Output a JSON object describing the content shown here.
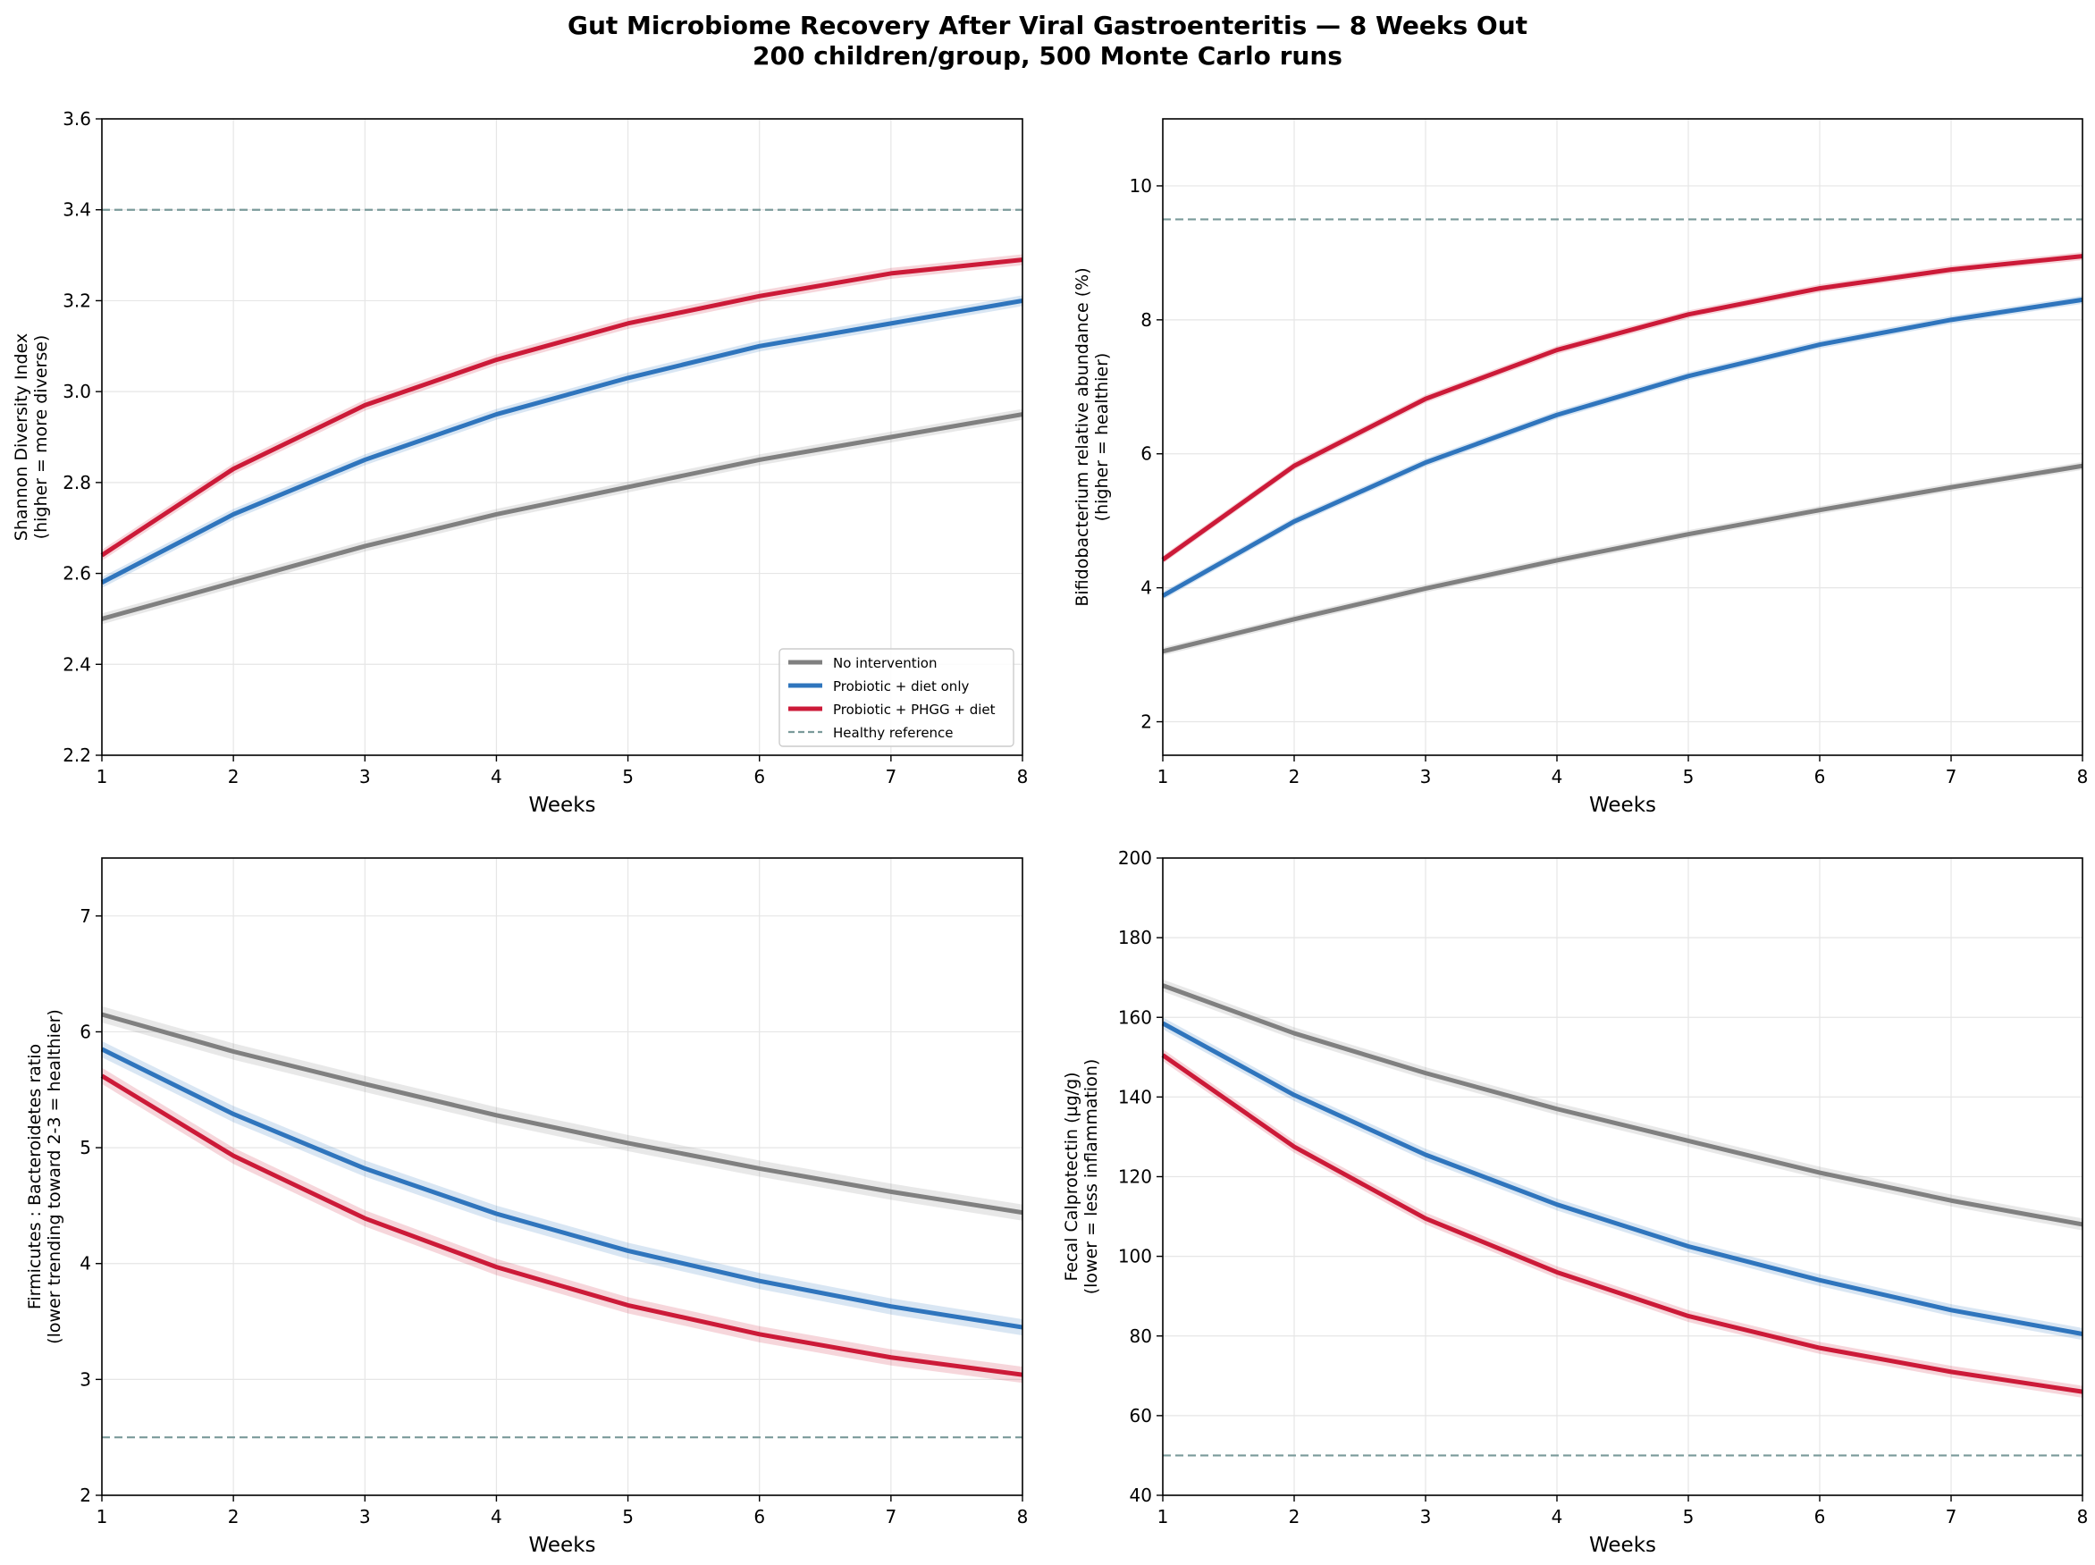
{
  "figure": {
    "title_line1": "Gut Microbiome Recovery After Viral Gastroenteritis — 8 Weeks Out",
    "title_line2": "200 children/group, 500 Monte Carlo runs"
  },
  "colors": {
    "no_intervention": "#808080",
    "probiotic_diet": "#2f75bd",
    "probiotic_phgg_diet": "#cc1a38",
    "healthy_reference": "#7a9a9a",
    "grid": "#e6e6e6"
  },
  "legend": {
    "items": [
      {
        "label": "No intervention",
        "color": "#808080",
        "style": "solid"
      },
      {
        "label": "Probiotic + diet only",
        "color": "#2f75bd",
        "style": "solid"
      },
      {
        "label": "Probiotic + PHGG + diet",
        "color": "#cc1a38",
        "style": "solid"
      },
      {
        "label": "Healthy reference",
        "color": "#7a9a9a",
        "style": "dashed"
      }
    ]
  },
  "chart_data": [
    {
      "type": "line",
      "xlabel": "Weeks",
      "ylabel": [
        "Shannon Diversity Index",
        "(higher = more diverse)"
      ],
      "x": [
        1,
        2,
        3,
        4,
        5,
        6,
        7,
        8
      ],
      "xlim": [
        1,
        8
      ],
      "ylim": [
        2.2,
        3.6
      ],
      "yticks": [
        2.2,
        2.4,
        2.6,
        2.8,
        3.0,
        3.2,
        3.4,
        3.6
      ],
      "ytick_labels": [
        "2.2",
        "2.4",
        "2.6",
        "2.8",
        "3.0",
        "3.2",
        "3.4",
        "3.6"
      ],
      "xticks": [
        1,
        2,
        3,
        4,
        5,
        6,
        7,
        8
      ],
      "grid": true,
      "legend": "lower-right",
      "band_halfwidth": 0.012,
      "reference": 3.4,
      "series": [
        {
          "name": "No intervention",
          "values": [
            2.5,
            2.58,
            2.66,
            2.73,
            2.79,
            2.85,
            2.9,
            2.95
          ]
        },
        {
          "name": "Probiotic + diet only",
          "values": [
            2.58,
            2.73,
            2.85,
            2.95,
            3.03,
            3.1,
            3.15,
            3.2
          ]
        },
        {
          "name": "Probiotic + PHGG + diet",
          "values": [
            2.64,
            2.83,
            2.97,
            3.07,
            3.15,
            3.21,
            3.26,
            3.29
          ]
        }
      ]
    },
    {
      "type": "line",
      "xlabel": "Weeks",
      "ylabel": [
        "Bifidobacterium relative abundance (%)",
        "(higher = healthier)"
      ],
      "x": [
        1,
        2,
        3,
        4,
        5,
        6,
        7,
        8
      ],
      "xlim": [
        1,
        8
      ],
      "ylim": [
        1.5,
        11
      ],
      "yticks": [
        2,
        4,
        6,
        8,
        10
      ],
      "ytick_labels": [
        "2",
        "4",
        "6",
        "8",
        "10"
      ],
      "xticks": [
        1,
        2,
        3,
        4,
        5,
        6,
        7,
        8
      ],
      "grid": true,
      "band_halfwidth": 0.06,
      "reference": 9.5,
      "series": [
        {
          "name": "No intervention",
          "values": [
            3.05,
            3.53,
            3.99,
            4.41,
            4.8,
            5.16,
            5.5,
            5.82
          ]
        },
        {
          "name": "Probiotic + diet only",
          "values": [
            3.88,
            4.99,
            5.87,
            6.58,
            7.16,
            7.63,
            8.0,
            8.3
          ]
        },
        {
          "name": "Probiotic + PHGG + diet",
          "values": [
            4.42,
            5.82,
            6.82,
            7.55,
            8.08,
            8.47,
            8.75,
            8.95
          ]
        }
      ]
    },
    {
      "type": "line",
      "xlabel": "Weeks",
      "ylabel": [
        "Firmicutes : Bacteroidetes ratio",
        "(lower trending toward 2-3 = healthier)"
      ],
      "x": [
        1,
        2,
        3,
        4,
        5,
        6,
        7,
        8
      ],
      "xlim": [
        1,
        8
      ],
      "ylim": [
        2,
        7.5
      ],
      "yticks": [
        2,
        3,
        4,
        5,
        6,
        7
      ],
      "ytick_labels": [
        "2",
        "3",
        "4",
        "5",
        "6",
        "7"
      ],
      "xticks": [
        1,
        2,
        3,
        4,
        5,
        6,
        7,
        8
      ],
      "grid": true,
      "band_halfwidth": 0.07,
      "reference": 2.5,
      "series": [
        {
          "name": "No intervention",
          "values": [
            6.15,
            5.83,
            5.55,
            5.28,
            5.04,
            4.82,
            4.62,
            4.44
          ]
        },
        {
          "name": "Probiotic + diet only",
          "values": [
            5.85,
            5.29,
            4.82,
            4.43,
            4.11,
            3.85,
            3.63,
            3.45
          ]
        },
        {
          "name": "Probiotic + PHGG + diet",
          "values": [
            5.62,
            4.93,
            4.39,
            3.97,
            3.64,
            3.39,
            3.19,
            3.04
          ]
        }
      ]
    },
    {
      "type": "line",
      "xlabel": "Weeks",
      "ylabel": [
        "Fecal Calprotectin (µg/g)",
        "(lower = less inflammation)"
      ],
      "x": [
        1,
        2,
        3,
        4,
        5,
        6,
        7,
        8
      ],
      "xlim": [
        1,
        8
      ],
      "ylim": [
        40,
        200
      ],
      "yticks": [
        40,
        60,
        80,
        100,
        120,
        140,
        160,
        180,
        200
      ],
      "ytick_labels": [
        "40",
        "60",
        "80",
        "100",
        "120",
        "140",
        "160",
        "180",
        "200"
      ],
      "xticks": [
        1,
        2,
        3,
        4,
        5,
        6,
        7,
        8
      ],
      "grid": true,
      "band_halfwidth": 1.5,
      "reference": 50,
      "series": [
        {
          "name": "No intervention",
          "values": [
            168,
            156,
            146,
            137,
            129,
            121,
            114,
            108
          ]
        },
        {
          "name": "Probiotic + diet only",
          "values": [
            158.5,
            140.5,
            125.5,
            113,
            102.5,
            94,
            86.5,
            80.5
          ]
        },
        {
          "name": "Probiotic + PHGG + diet",
          "values": [
            150.5,
            127.5,
            109.5,
            96,
            85,
            77,
            71,
            66
          ]
        }
      ]
    }
  ]
}
